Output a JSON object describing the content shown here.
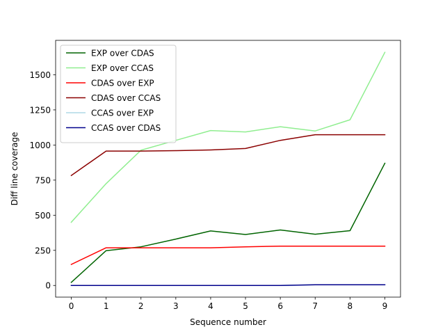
{
  "chart_data": {
    "type": "line",
    "title": "",
    "xlabel": "Sequence number",
    "ylabel": "Diff line coverage",
    "xlim": [
      -0.45,
      9.45
    ],
    "ylim": [
      -83,
      1745
    ],
    "x_ticks": [
      0,
      1,
      2,
      3,
      4,
      5,
      6,
      7,
      8,
      9
    ],
    "y_ticks": [
      0,
      250,
      500,
      750,
      1000,
      1250,
      1500
    ],
    "grid": false,
    "legend_position": "upper-left",
    "x": [
      0,
      1,
      2,
      3,
      4,
      5,
      6,
      7,
      8,
      9
    ],
    "series": [
      {
        "name": "EXP over CDAS",
        "color": "#006400",
        "values": [
          22,
          248,
          275,
          330,
          388,
          363,
          395,
          365,
          390,
          870
        ]
      },
      {
        "name": "EXP over CCAS",
        "color": "#90ee90",
        "values": [
          450,
          725,
          963,
          1033,
          1103,
          1093,
          1130,
          1100,
          1180,
          1660
        ]
      },
      {
        "name": "CDAS over EXP",
        "color": "#ff0000",
        "values": [
          150,
          268,
          268,
          268,
          268,
          275,
          280,
          280,
          280,
          280
        ]
      },
      {
        "name": "CDAS over CCAS",
        "color": "#8b0000",
        "values": [
          783,
          957,
          957,
          960,
          965,
          975,
          1033,
          1073,
          1073,
          1073
        ]
      },
      {
        "name": "CCAS over EXP",
        "color": "#add8e6",
        "values": [
          0,
          0,
          0,
          0,
          0,
          0,
          0,
          5,
          5,
          5
        ]
      },
      {
        "name": "CCAS over CDAS",
        "color": "#00008b",
        "values": [
          0,
          0,
          0,
          0,
          0,
          0,
          0,
          5,
          5,
          5
        ]
      }
    ]
  }
}
